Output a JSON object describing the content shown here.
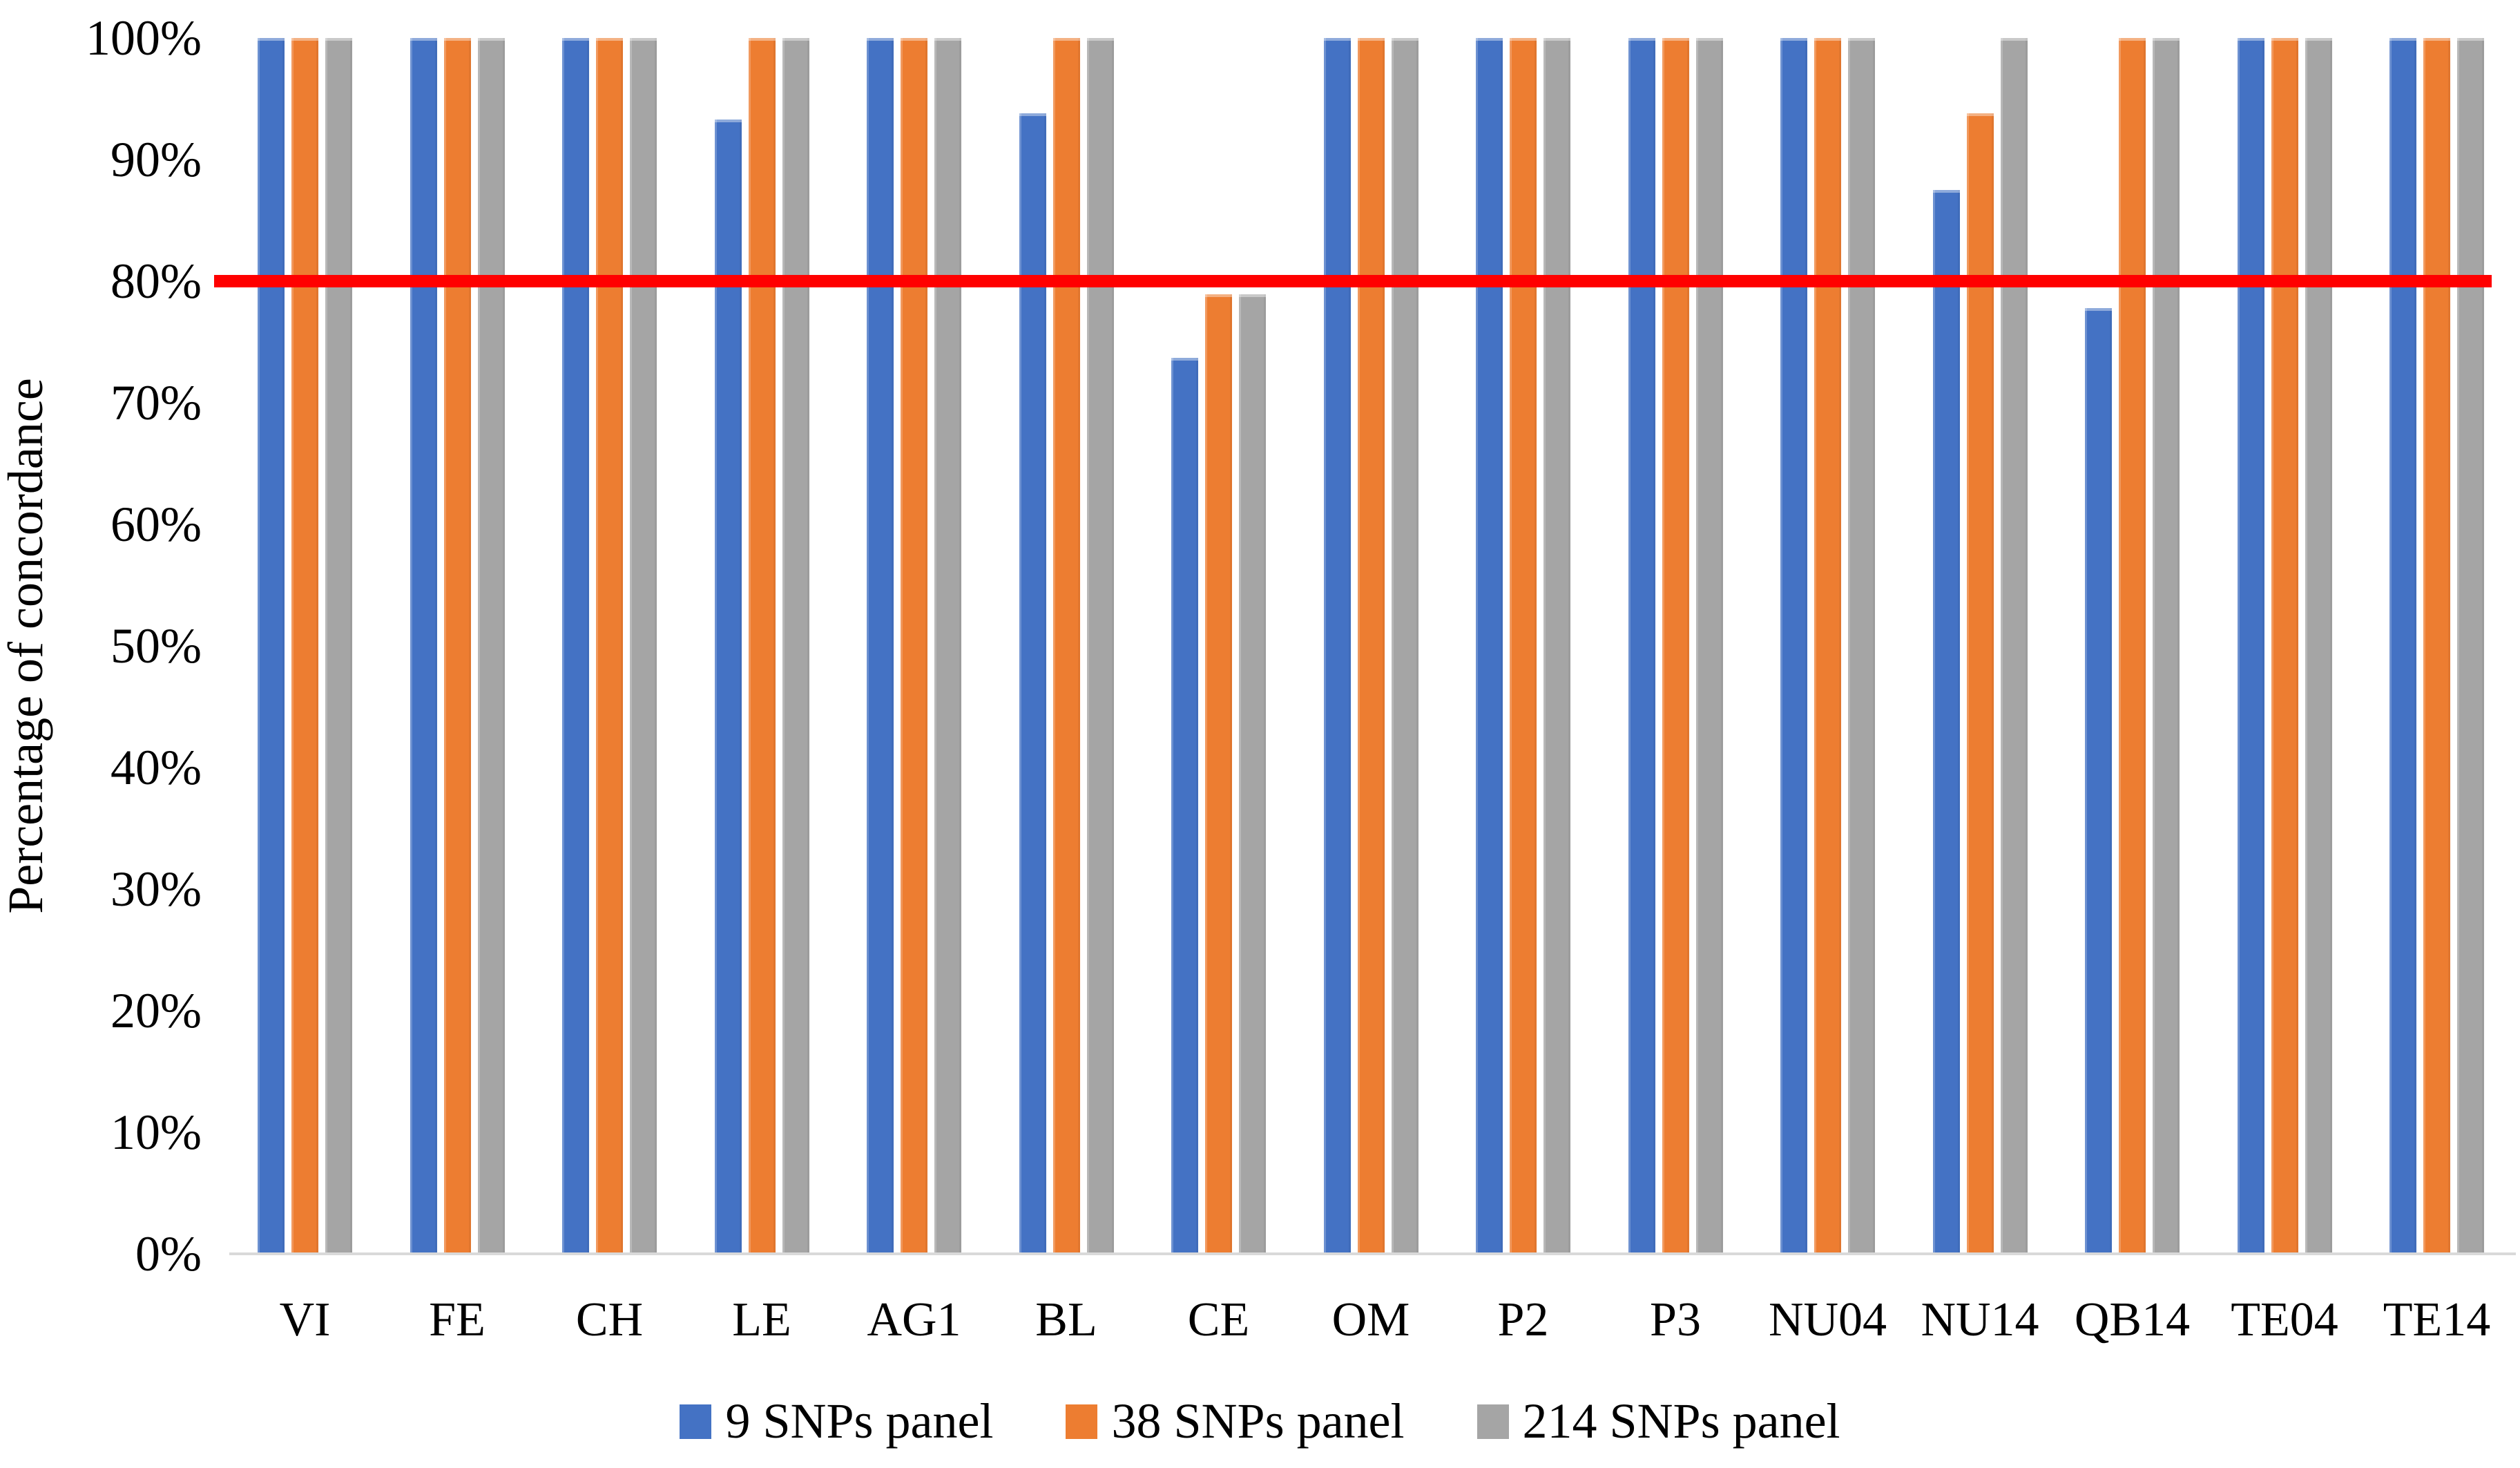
{
  "figure": {
    "background": "#FFFFFF",
    "text_color": "#000000",
    "axis_line_color": "#D9D9D9"
  },
  "chart_data": {
    "type": "bar",
    "title": "",
    "xlabel": "",
    "ylabel": "Percentage of concordance",
    "ylim": [
      0,
      100
    ],
    "grid": false,
    "legend_position": "bottom-center",
    "y_ticks": [
      {
        "label": "100%",
        "value": 100
      },
      {
        "label": "90%",
        "value": 90
      },
      {
        "label": "80%",
        "value": 80
      },
      {
        "label": "70%",
        "value": 70
      },
      {
        "label": "60%",
        "value": 60
      },
      {
        "label": "50%",
        "value": 50
      },
      {
        "label": "40%",
        "value": 40
      },
      {
        "label": "30%",
        "value": 30
      },
      {
        "label": "20%",
        "value": 20
      },
      {
        "label": "10%",
        "value": 10
      },
      {
        "label": "0%",
        "value": 0
      }
    ],
    "categories": [
      "VI",
      "FE",
      "CH",
      "LE",
      "AG1",
      "BL",
      "CE",
      "OM",
      "P2",
      "P3",
      "NU04",
      "NU14",
      "QB14",
      "TE04",
      "TE14"
    ],
    "series": [
      {
        "name": "9 SNPs panel",
        "color": "#4472C4",
        "values": [
          100,
          100,
          100,
          93.3,
          100,
          93.8,
          73.7,
          100,
          100,
          100,
          100,
          87.5,
          77.8,
          100,
          100
        ]
      },
      {
        "name": "38 SNPs panel",
        "color": "#ED7D31",
        "values": [
          100,
          100,
          100,
          100,
          100,
          100,
          78.9,
          100,
          100,
          100,
          100,
          93.8,
          100,
          100,
          100
        ]
      },
      {
        "name": "214 SNPs panel",
        "color": "#A5A5A5",
        "values": [
          100,
          100,
          100,
          100,
          100,
          100,
          78.9,
          100,
          100,
          100,
          100,
          100,
          100,
          100,
          100
        ]
      }
    ],
    "reference_line": {
      "value": 80,
      "color": "#FF0000"
    }
  }
}
